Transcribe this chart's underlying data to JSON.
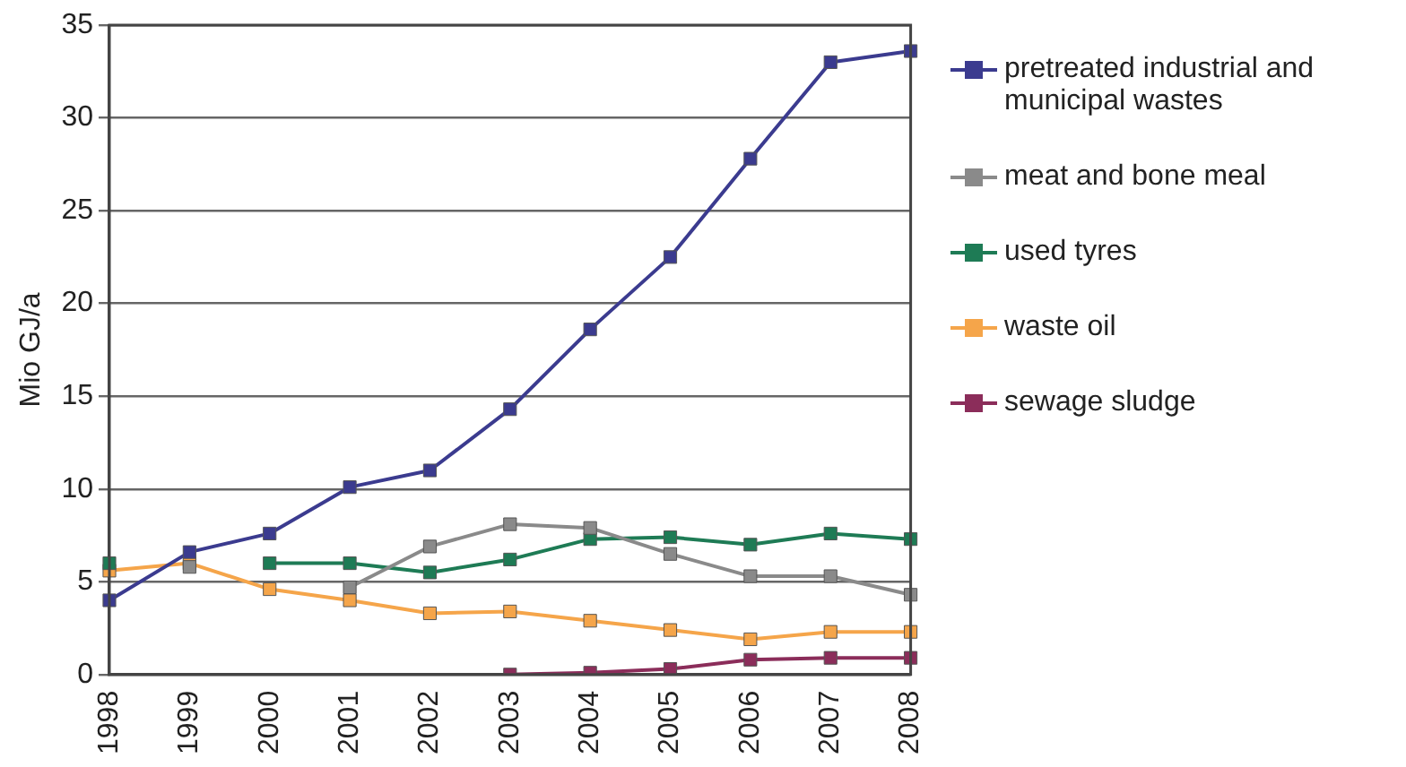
{
  "chart_data": {
    "type": "line",
    "ylabel": "Mio GJ/a",
    "categories": [
      "1998",
      "1999",
      "2000",
      "2001",
      "2002",
      "2003",
      "2004",
      "2005",
      "2006",
      "2007",
      "2008"
    ],
    "series": [
      {
        "name": "pretreated industrial and municipal wastes",
        "color": "#3b3b8f",
        "values": [
          4.0,
          6.6,
          7.6,
          10.1,
          11.0,
          14.3,
          18.6,
          22.5,
          27.8,
          33.0,
          33.6
        ]
      },
      {
        "name": "meat and bone meal",
        "color": "#8a8a8a",
        "values": [
          null,
          5.8,
          null,
          4.7,
          6.9,
          8.1,
          7.9,
          6.5,
          5.3,
          5.3,
          4.3
        ]
      },
      {
        "name": "used tyres",
        "color": "#1e7b55",
        "values": [
          6.0,
          null,
          6.0,
          6.0,
          5.5,
          6.2,
          7.3,
          7.4,
          7.0,
          7.6,
          7.3
        ]
      },
      {
        "name": "waste oil",
        "color": "#f5a54a",
        "values": [
          5.6,
          6.0,
          4.6,
          4.0,
          3.3,
          3.4,
          2.9,
          2.4,
          1.9,
          2.3,
          2.3
        ]
      },
      {
        "name": "sewage sludge",
        "color": "#8b2d5a",
        "values": [
          null,
          null,
          null,
          null,
          null,
          0.0,
          0.1,
          0.3,
          0.8,
          0.9,
          0.9
        ]
      }
    ],
    "ylim": [
      0,
      35
    ],
    "yticks": [
      0,
      5,
      10,
      15,
      20,
      25,
      30,
      35
    ],
    "grid": "y",
    "legend": "right",
    "marker": "square",
    "line_style": "solid"
  }
}
